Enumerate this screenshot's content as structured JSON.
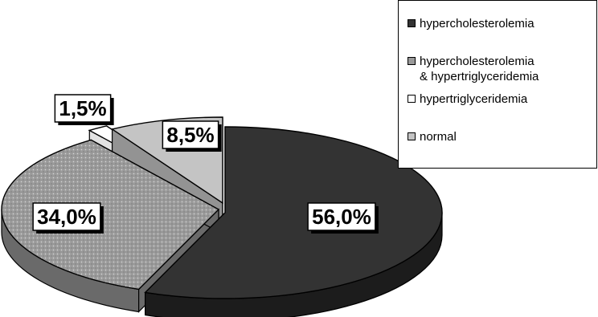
{
  "chart_data": {
    "type": "pie",
    "categories": [
      "hypercholesterolemia",
      "hypercholesterolemia\n& hypertriglyceridemia",
      "hypertriglyceridemia",
      "normal"
    ],
    "values": [
      56.0,
      34.0,
      1.5,
      8.5
    ],
    "data_labels": [
      "56,0%",
      "34,0%",
      "1,5%",
      "8,5%"
    ],
    "colors": [
      "#333333",
      "#9a9a9a",
      "#ffffff",
      "#c4c4c4"
    ],
    "title": "",
    "legend_position": "top-right",
    "three_d": true,
    "exploded": true
  }
}
